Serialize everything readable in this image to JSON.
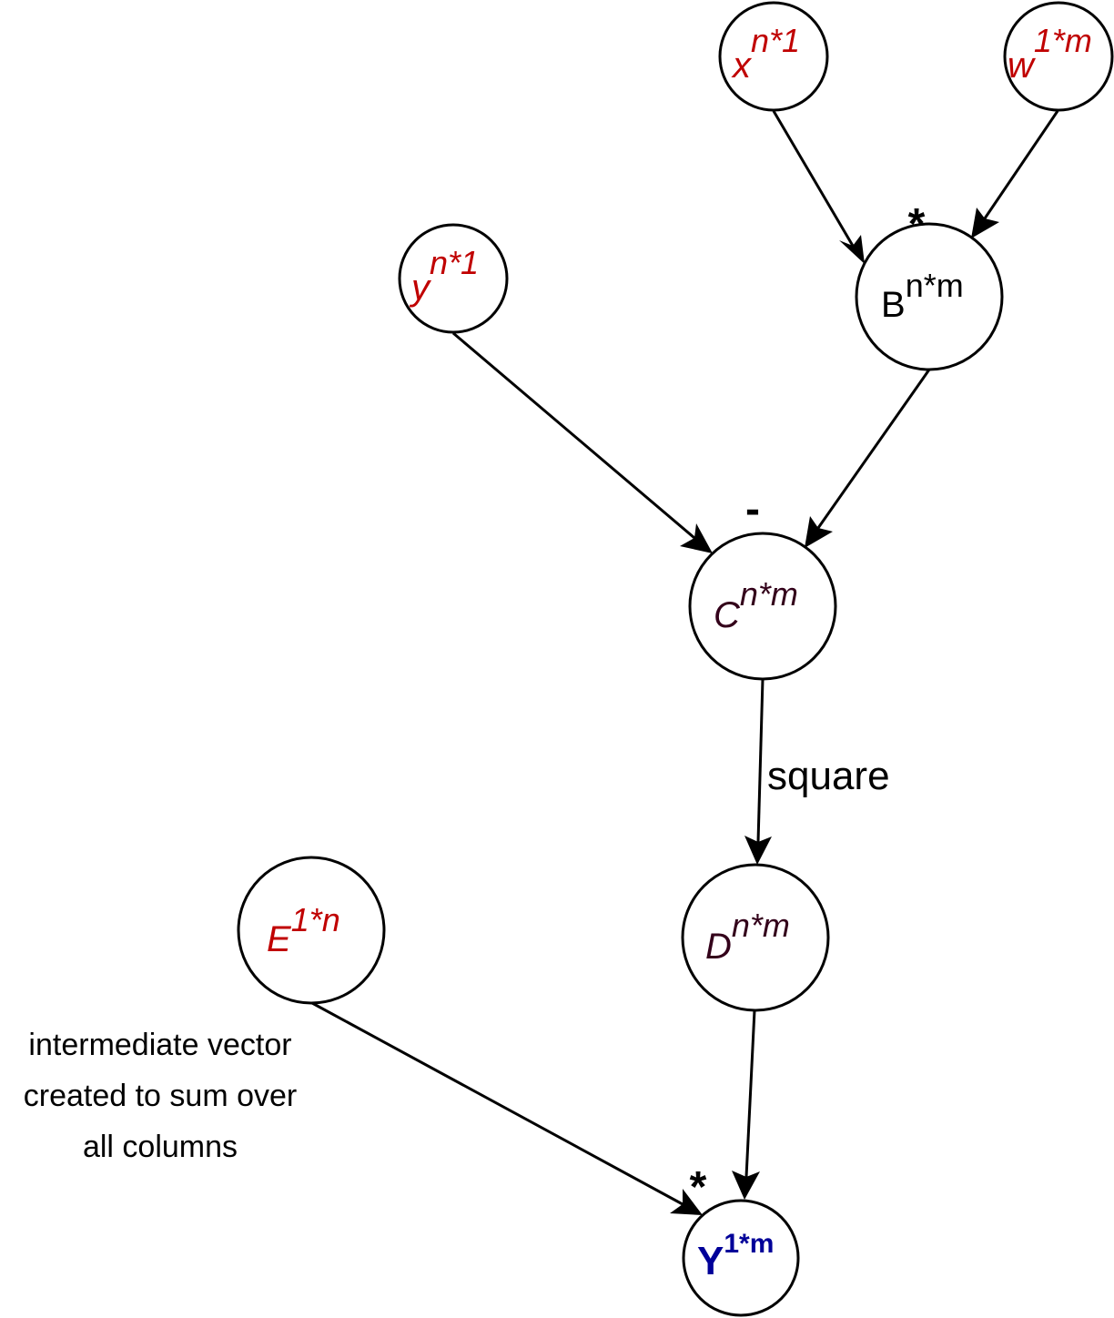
{
  "colors": {
    "input": "#c00000",
    "intermediate": "#33001a",
    "output": "#000099",
    "plain": "#000000"
  },
  "nodes": {
    "x": {
      "base": "x",
      "sup": "n*1"
    },
    "w": {
      "base": "w",
      "sup": "1*m"
    },
    "y": {
      "base": "y",
      "sup": "n*1"
    },
    "B": {
      "base": "B",
      "sup": "n*m"
    },
    "C": {
      "base": "C",
      "sup": "n*m"
    },
    "D": {
      "base": "D",
      "sup": "n*m"
    },
    "E": {
      "base": "E",
      "sup": "1*n"
    },
    "Y": {
      "base": "Y",
      "sup": "1*m"
    }
  },
  "operators": {
    "multiply_B": "*",
    "subtract_C": "-",
    "multiply_Y": "*"
  },
  "edge_labels": {
    "square": "square"
  },
  "note": {
    "lines": [
      "intermediate vector",
      "created to sum over",
      "all columns"
    ]
  }
}
